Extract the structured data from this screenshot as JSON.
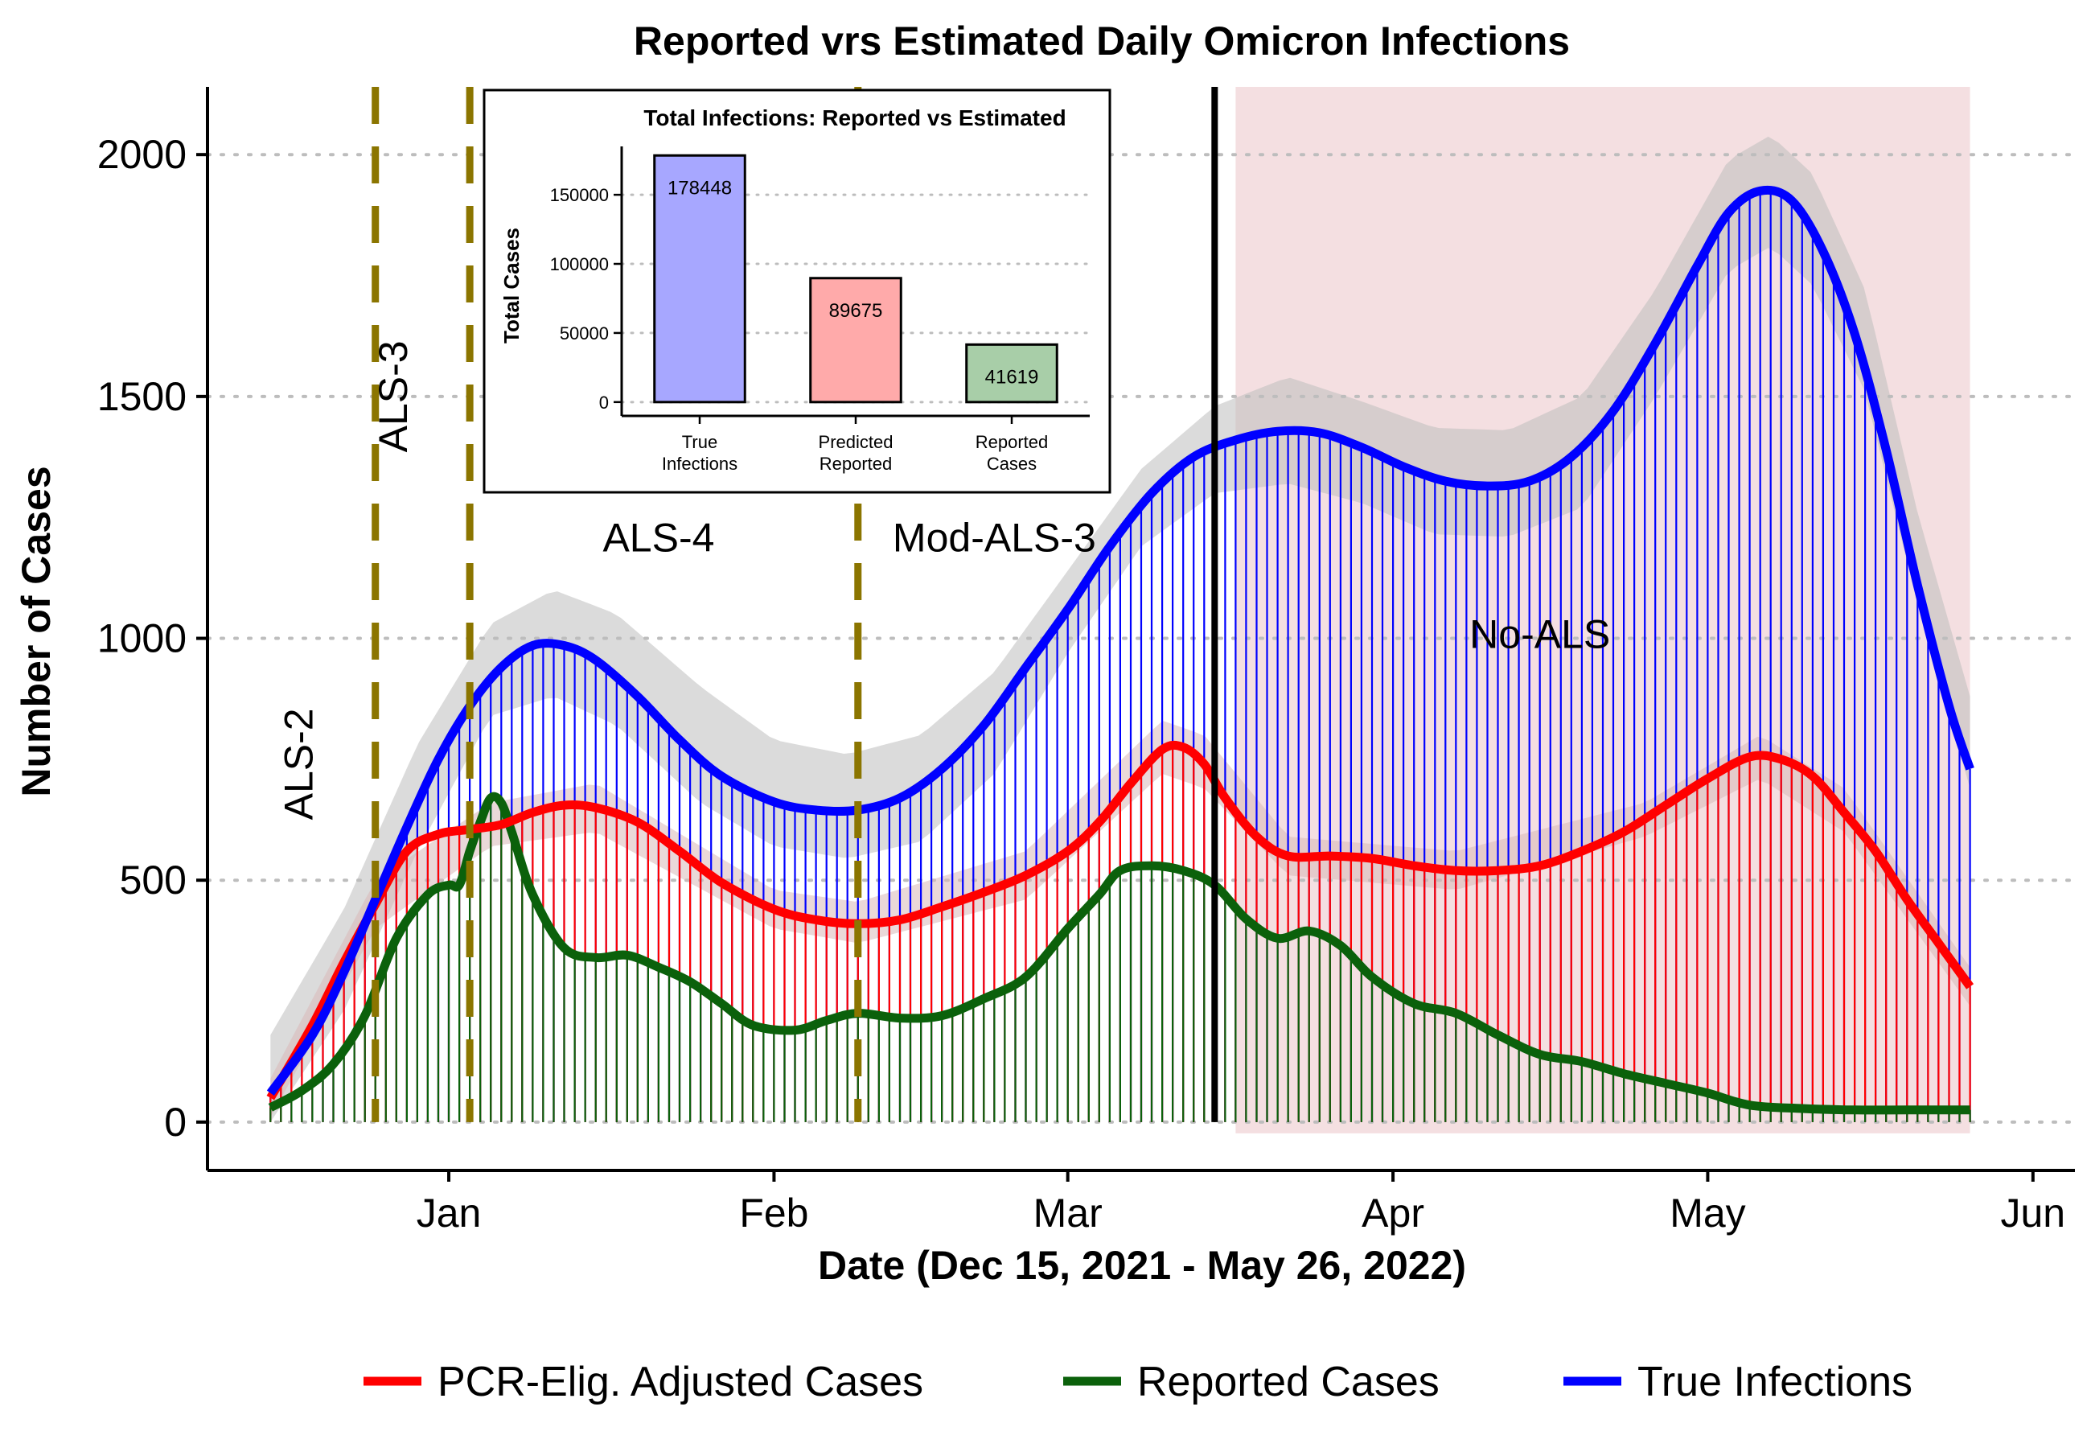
{
  "chart_data": {
    "type": "line",
    "title": "Reported vrs Estimated Daily Omicron Infections",
    "xlabel": "Date (Dec 15, 2021 - May 26, 2022)",
    "ylabel": "Number of Cases",
    "x_range": [
      "2021-12-15",
      "2022-05-26"
    ],
    "ylim": [
      -100,
      2140
    ],
    "x_ticks": [
      {
        "date": "2022-01-01",
        "label": "Jan"
      },
      {
        "date": "2022-02-01",
        "label": "Feb"
      },
      {
        "date": "2022-03-01",
        "label": "Mar"
      },
      {
        "date": "2022-04-01",
        "label": "Apr"
      },
      {
        "date": "2022-05-01",
        "label": "May"
      },
      {
        "date": "2022-06-01",
        "label": "Jun"
      }
    ],
    "y_ticks": [
      0,
      500,
      1000,
      1500,
      2000
    ],
    "grid": "horizontal-dotted",
    "legend_position": "bottom",
    "series": [
      {
        "name": "True Infections",
        "color": "#0000ff",
        "points": [
          [
            "2021-12-15",
            60
          ],
          [
            "2021-12-19",
            180
          ],
          [
            "2021-12-22",
            310
          ],
          [
            "2021-12-25",
            460
          ],
          [
            "2021-12-28",
            610
          ],
          [
            "2021-12-31",
            750
          ],
          [
            "2022-01-03",
            860
          ],
          [
            "2022-01-06",
            940
          ],
          [
            "2022-01-09",
            985
          ],
          [
            "2022-01-12",
            985
          ],
          [
            "2022-01-15",
            955
          ],
          [
            "2022-01-19",
            880
          ],
          [
            "2022-01-23",
            790
          ],
          [
            "2022-01-27",
            715
          ],
          [
            "2022-02-01",
            662
          ],
          [
            "2022-02-05",
            645
          ],
          [
            "2022-02-09",
            645
          ],
          [
            "2022-02-13",
            670
          ],
          [
            "2022-02-17",
            730
          ],
          [
            "2022-02-21",
            820
          ],
          [
            "2022-02-25",
            940
          ],
          [
            "2022-03-01",
            1060
          ],
          [
            "2022-03-05",
            1190
          ],
          [
            "2022-03-09",
            1300
          ],
          [
            "2022-03-13",
            1375
          ],
          [
            "2022-03-17",
            1410
          ],
          [
            "2022-03-21",
            1428
          ],
          [
            "2022-03-25",
            1425
          ],
          [
            "2022-03-29",
            1395
          ],
          [
            "2022-04-02",
            1355
          ],
          [
            "2022-04-06",
            1325
          ],
          [
            "2022-04-10",
            1315
          ],
          [
            "2022-04-14",
            1325
          ],
          [
            "2022-04-18",
            1375
          ],
          [
            "2022-04-22",
            1470
          ],
          [
            "2022-04-26",
            1610
          ],
          [
            "2022-04-30",
            1770
          ],
          [
            "2022-05-03",
            1880
          ],
          [
            "2022-05-06",
            1925
          ],
          [
            "2022-05-09",
            1905
          ],
          [
            "2022-05-12",
            1800
          ],
          [
            "2022-05-15",
            1630
          ],
          [
            "2022-05-18",
            1390
          ],
          [
            "2022-05-21",
            1110
          ],
          [
            "2022-05-24",
            860
          ],
          [
            "2022-05-26",
            730
          ]
        ]
      },
      {
        "name": "PCR-Elig. Adjusted Cases",
        "color": "#ff0000",
        "points": [
          [
            "2021-12-15",
            50
          ],
          [
            "2021-12-19",
            200
          ],
          [
            "2021-12-22",
            330
          ],
          [
            "2021-12-25",
            450
          ],
          [
            "2021-12-28",
            560
          ],
          [
            "2021-12-31",
            595
          ],
          [
            "2022-01-03",
            605
          ],
          [
            "2022-01-06",
            615
          ],
          [
            "2022-01-09",
            640
          ],
          [
            "2022-01-12",
            655
          ],
          [
            "2022-01-15",
            650
          ],
          [
            "2022-01-19",
            620
          ],
          [
            "2022-01-23",
            560
          ],
          [
            "2022-01-27",
            495
          ],
          [
            "2022-02-01",
            440
          ],
          [
            "2022-02-05",
            418
          ],
          [
            "2022-02-09",
            410
          ],
          [
            "2022-02-13",
            418
          ],
          [
            "2022-02-17",
            445
          ],
          [
            "2022-02-21",
            475
          ],
          [
            "2022-02-25",
            510
          ],
          [
            "2022-03-01",
            560
          ],
          [
            "2022-03-04",
            620
          ],
          [
            "2022-03-07",
            700
          ],
          [
            "2022-03-10",
            770
          ],
          [
            "2022-03-12",
            775
          ],
          [
            "2022-03-14",
            740
          ],
          [
            "2022-03-16",
            670
          ],
          [
            "2022-03-19",
            590
          ],
          [
            "2022-03-22",
            550
          ],
          [
            "2022-03-26",
            550
          ],
          [
            "2022-03-30",
            545
          ],
          [
            "2022-04-03",
            530
          ],
          [
            "2022-04-07",
            520
          ],
          [
            "2022-04-11",
            520
          ],
          [
            "2022-04-15",
            530
          ],
          [
            "2022-04-19",
            560
          ],
          [
            "2022-04-23",
            600
          ],
          [
            "2022-04-27",
            655
          ],
          [
            "2022-05-01",
            710
          ],
          [
            "2022-05-05",
            755
          ],
          [
            "2022-05-08",
            750
          ],
          [
            "2022-05-11",
            715
          ],
          [
            "2022-05-14",
            640
          ],
          [
            "2022-05-17",
            560
          ],
          [
            "2022-05-20",
            460
          ],
          [
            "2022-05-23",
            370
          ],
          [
            "2022-05-26",
            280
          ]
        ]
      },
      {
        "name": "Reported Cases",
        "color": "#0b610b",
        "points": [
          [
            "2021-12-15",
            30
          ],
          [
            "2021-12-18",
            65
          ],
          [
            "2021-12-21",
            120
          ],
          [
            "2021-12-24",
            220
          ],
          [
            "2021-12-27",
            380
          ],
          [
            "2021-12-30",
            470
          ],
          [
            "2022-01-01",
            490
          ],
          [
            "2022-01-02",
            490
          ],
          [
            "2022-01-03",
            560
          ],
          [
            "2022-01-04",
            620
          ],
          [
            "2022-01-05",
            670
          ],
          [
            "2022-01-06",
            660
          ],
          [
            "2022-01-07",
            600
          ],
          [
            "2022-01-09",
            470
          ],
          [
            "2022-01-12",
            360
          ],
          [
            "2022-01-15",
            340
          ],
          [
            "2022-01-18",
            345
          ],
          [
            "2022-01-21",
            320
          ],
          [
            "2022-01-24",
            290
          ],
          [
            "2022-01-27",
            245
          ],
          [
            "2022-01-30",
            200
          ],
          [
            "2022-02-03",
            190
          ],
          [
            "2022-02-06",
            210
          ],
          [
            "2022-02-09",
            225
          ],
          [
            "2022-02-13",
            215
          ],
          [
            "2022-02-17",
            220
          ],
          [
            "2022-02-21",
            255
          ],
          [
            "2022-02-25",
            300
          ],
          [
            "2022-03-01",
            400
          ],
          [
            "2022-03-04",
            470
          ],
          [
            "2022-03-06",
            520
          ],
          [
            "2022-03-09",
            530
          ],
          [
            "2022-03-12",
            520
          ],
          [
            "2022-03-15",
            490
          ],
          [
            "2022-03-18",
            420
          ],
          [
            "2022-03-21",
            380
          ],
          [
            "2022-03-24",
            395
          ],
          [
            "2022-03-27",
            365
          ],
          [
            "2022-03-30",
            300
          ],
          [
            "2022-04-03",
            245
          ],
          [
            "2022-04-07",
            225
          ],
          [
            "2022-04-11",
            180
          ],
          [
            "2022-04-15",
            140
          ],
          [
            "2022-04-19",
            125
          ],
          [
            "2022-04-23",
            100
          ],
          [
            "2022-04-27",
            80
          ],
          [
            "2022-05-01",
            60
          ],
          [
            "2022-05-05",
            35
          ],
          [
            "2022-05-10",
            28
          ],
          [
            "2022-05-15",
            25
          ],
          [
            "2022-05-20",
            25
          ],
          [
            "2022-05-26",
            25
          ]
        ]
      }
    ],
    "confidence_bands": [
      {
        "series": "True Infections",
        "color": "#bebebe",
        "upper": [
          [
            "2021-12-15",
            180
          ],
          [
            "2021-12-22",
            440
          ],
          [
            "2021-12-29",
            780
          ],
          [
            "2022-01-05",
            1030
          ],
          [
            "2022-01-11",
            1100
          ],
          [
            "2022-01-17",
            1050
          ],
          [
            "2022-01-25",
            900
          ],
          [
            "2022-02-01",
            790
          ],
          [
            "2022-02-08",
            760
          ],
          [
            "2022-02-15",
            800
          ],
          [
            "2022-02-22",
            930
          ],
          [
            "2022-03-01",
            1140
          ],
          [
            "2022-03-08",
            1350
          ],
          [
            "2022-03-15",
            1480
          ],
          [
            "2022-03-22",
            1540
          ],
          [
            "2022-03-29",
            1490
          ],
          [
            "2022-04-05",
            1435
          ],
          [
            "2022-04-12",
            1430
          ],
          [
            "2022-04-19",
            1500
          ],
          [
            "2022-04-26",
            1720
          ],
          [
            "2022-05-03",
            1990
          ],
          [
            "2022-05-07",
            2040
          ],
          [
            "2022-05-11",
            1960
          ],
          [
            "2022-05-16",
            1720
          ],
          [
            "2022-05-21",
            1260
          ],
          [
            "2022-05-26",
            880
          ]
        ],
        "lower": [
          [
            "2021-12-15",
            0
          ],
          [
            "2021-12-22",
            230
          ],
          [
            "2021-12-29",
            560
          ],
          [
            "2022-01-05",
            840
          ],
          [
            "2022-01-11",
            880
          ],
          [
            "2022-01-17",
            820
          ],
          [
            "2022-01-25",
            660
          ],
          [
            "2022-02-01",
            570
          ],
          [
            "2022-02-08",
            545
          ],
          [
            "2022-02-15",
            580
          ],
          [
            "2022-02-22",
            720
          ],
          [
            "2022-03-01",
            970
          ],
          [
            "2022-03-08",
            1190
          ],
          [
            "2022-03-15",
            1300
          ],
          [
            "2022-03-22",
            1320
          ],
          [
            "2022-03-29",
            1280
          ],
          [
            "2022-04-05",
            1215
          ],
          [
            "2022-04-12",
            1210
          ],
          [
            "2022-04-19",
            1270
          ],
          [
            "2022-04-26",
            1500
          ],
          [
            "2022-05-03",
            1760
          ],
          [
            "2022-05-07",
            1810
          ],
          [
            "2022-05-11",
            1730
          ],
          [
            "2022-05-16",
            1510
          ],
          [
            "2022-05-21",
            1070
          ],
          [
            "2022-05-26",
            690
          ]
        ]
      },
      {
        "series": "PCR-Elig. Adjusted Cases",
        "color": "#d9b8b8",
        "upper": [
          [
            "2021-12-15",
            90
          ],
          [
            "2021-12-25",
            500
          ],
          [
            "2022-01-05",
            660
          ],
          [
            "2022-01-15",
            700
          ],
          [
            "2022-02-01",
            480
          ],
          [
            "2022-02-09",
            455
          ],
          [
            "2022-02-25",
            560
          ],
          [
            "2022-03-10",
            830
          ],
          [
            "2022-03-14",
            800
          ],
          [
            "2022-03-22",
            590
          ],
          [
            "2022-04-07",
            560
          ],
          [
            "2022-04-25",
            660
          ],
          [
            "2022-05-06",
            800
          ],
          [
            "2022-05-14",
            690
          ],
          [
            "2022-05-26",
            320
          ]
        ],
        "lower": [
          [
            "2021-12-15",
            10
          ],
          [
            "2021-12-25",
            400
          ],
          [
            "2022-01-05",
            570
          ],
          [
            "2022-01-15",
            600
          ],
          [
            "2022-02-01",
            400
          ],
          [
            "2022-02-09",
            370
          ],
          [
            "2022-02-25",
            460
          ],
          [
            "2022-03-10",
            720
          ],
          [
            "2022-03-14",
            690
          ],
          [
            "2022-03-22",
            510
          ],
          [
            "2022-04-07",
            480
          ],
          [
            "2022-04-25",
            590
          ],
          [
            "2022-05-06",
            710
          ],
          [
            "2022-05-14",
            600
          ],
          [
            "2022-05-26",
            240
          ]
        ]
      }
    ],
    "vlines": [
      {
        "date": "2021-12-25",
        "style": "dashed",
        "color": "#8b7500"
      },
      {
        "date": "2022-01-03",
        "style": "dashed",
        "color": "#8b7500"
      },
      {
        "date": "2022-02-09",
        "style": "dashed",
        "color": "#8b7500"
      },
      {
        "date": "2022-03-15",
        "style": "solid",
        "color": "#000000"
      }
    ],
    "shaded_region": {
      "from": "2022-03-17",
      "to": "2022-05-26",
      "color": "#f4dfe1"
    },
    "annotations": [
      {
        "text": "ALS-2",
        "date": "2021-12-19",
        "y": 740,
        "rotation": -90
      },
      {
        "text": "ALS-3",
        "date": "2021-12-28",
        "y": 1500,
        "rotation": -90
      },
      {
        "text": "ALS-4",
        "date": "2022-01-21",
        "y": 1180,
        "rotation": 0
      },
      {
        "text": "Mod-ALS-3",
        "date": "2022-02-22",
        "y": 1180,
        "rotation": 0
      },
      {
        "text": "No-ALS",
        "date": "2022-04-15",
        "y": 980,
        "rotation": 0
      }
    ],
    "legend": [
      {
        "label": "PCR-Elig. Adjusted Cases",
        "color": "#ff0000"
      },
      {
        "label": "Reported Cases",
        "color": "#0b610b"
      },
      {
        "label": "True Infections",
        "color": "#0000ff"
      }
    ],
    "inset": {
      "type": "bar",
      "title": "Total Infections: Reported vs Estimated",
      "ylabel": "Total Cases",
      "ylim": [
        -10000,
        185000
      ],
      "y_ticks": [
        0,
        50000,
        100000,
        150000
      ],
      "categories": [
        "True\nInfections",
        "Predicted\nReported",
        "Reported\nCases"
      ],
      "values": [
        178448,
        89675,
        41619
      ],
      "value_labels": [
        "178448",
        "89675",
        "41619"
      ],
      "colors": [
        "#a7a7ff",
        "#ffaaaa",
        "#a8cea8"
      ]
    }
  }
}
